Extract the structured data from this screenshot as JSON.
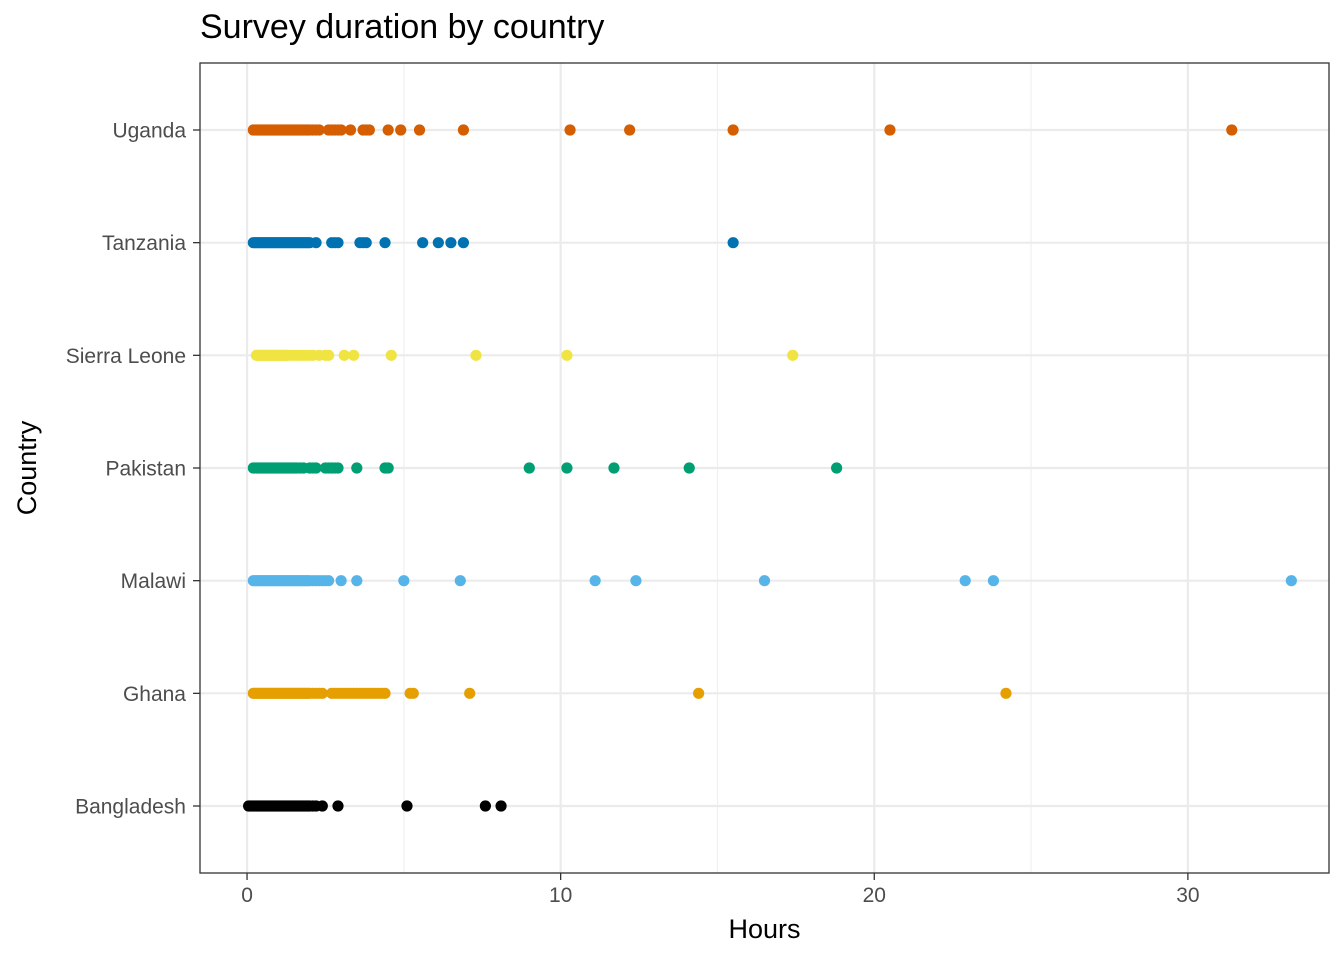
{
  "chart_data": {
    "type": "scatter",
    "title": "Survey duration by country",
    "xlabel": "Hours",
    "ylabel": "Country",
    "xlim": [
      -1.5,
      34.5
    ],
    "x_ticks": [
      0,
      10,
      20,
      30
    ],
    "grid": true,
    "legend": "none",
    "categories": [
      "Bangladesh",
      "Ghana",
      "Malawi",
      "Pakistan",
      "Sierra Leone",
      "Tanzania",
      "Uganda"
    ],
    "series": [
      {
        "category": "Bangladesh",
        "color": "#000000",
        "values": [
          0.05,
          0.1,
          0.15,
          0.2,
          0.25,
          0.3,
          0.35,
          0.4,
          0.45,
          0.5,
          0.55,
          0.6,
          0.65,
          0.7,
          0.75,
          0.8,
          0.85,
          0.9,
          0.95,
          1.0,
          1.05,
          1.1,
          1.15,
          1.2,
          1.25,
          1.3,
          1.35,
          1.4,
          1.45,
          1.5,
          1.55,
          1.6,
          1.65,
          1.7,
          1.75,
          1.8,
          1.85,
          1.9,
          1.95,
          2.0,
          2.1,
          2.2,
          2.4,
          2.9,
          5.1,
          7.6,
          8.1
        ]
      },
      {
        "category": "Ghana",
        "color": "#E69F00",
        "values": [
          0.2,
          0.25,
          0.3,
          0.35,
          0.4,
          0.45,
          0.5,
          0.55,
          0.6,
          0.65,
          0.7,
          0.75,
          0.8,
          0.85,
          0.9,
          0.95,
          1.0,
          1.05,
          1.1,
          1.15,
          1.2,
          1.25,
          1.3,
          1.35,
          1.4,
          1.45,
          1.5,
          1.55,
          1.6,
          1.65,
          1.7,
          1.75,
          1.8,
          1.85,
          1.9,
          1.95,
          2.0,
          2.1,
          2.2,
          2.3,
          2.4,
          2.7,
          2.8,
          2.9,
          3.0,
          3.1,
          3.2,
          3.3,
          3.4,
          3.5,
          3.6,
          3.7,
          3.8,
          3.9,
          4.0,
          4.1,
          4.2,
          4.3,
          4.4,
          5.2,
          5.3,
          7.1,
          14.4,
          24.2
        ]
      },
      {
        "category": "Malawi",
        "color": "#56B4E9",
        "values": [
          0.2,
          0.25,
          0.3,
          0.35,
          0.4,
          0.45,
          0.5,
          0.55,
          0.6,
          0.65,
          0.7,
          0.75,
          0.8,
          0.85,
          0.9,
          0.95,
          1.0,
          1.05,
          1.1,
          1.15,
          1.2,
          1.25,
          1.3,
          1.35,
          1.4,
          1.45,
          1.5,
          1.55,
          1.6,
          1.65,
          1.7,
          1.75,
          1.8,
          1.85,
          1.9,
          1.95,
          2.0,
          2.1,
          2.2,
          2.3,
          2.4,
          2.5,
          2.6,
          3.0,
          3.5,
          5.0,
          6.8,
          11.1,
          12.4,
          16.5,
          22.9,
          23.8,
          33.3
        ]
      },
      {
        "category": "Pakistan",
        "color": "#009E73",
        "values": [
          0.2,
          0.25,
          0.3,
          0.35,
          0.4,
          0.45,
          0.5,
          0.55,
          0.6,
          0.65,
          0.7,
          0.75,
          0.8,
          0.85,
          0.9,
          0.95,
          1.0,
          1.05,
          1.1,
          1.15,
          1.2,
          1.25,
          1.3,
          1.35,
          1.4,
          1.45,
          1.5,
          1.55,
          1.6,
          1.7,
          1.8,
          2.0,
          2.1,
          2.2,
          2.5,
          2.6,
          2.7,
          2.8,
          2.9,
          3.5,
          4.4,
          4.5,
          9.0,
          10.2,
          11.7,
          14.1,
          18.8
        ]
      },
      {
        "category": "Sierra Leone",
        "color": "#F0E442",
        "values": [
          0.3,
          0.35,
          0.4,
          0.45,
          0.5,
          0.55,
          0.6,
          0.65,
          0.7,
          0.75,
          0.8,
          0.85,
          0.9,
          0.95,
          1.0,
          1.05,
          1.1,
          1.15,
          1.2,
          1.25,
          1.3,
          1.4,
          1.5,
          1.6,
          1.7,
          1.8,
          1.9,
          2.0,
          2.1,
          2.3,
          2.5,
          2.6,
          3.1,
          3.4,
          4.6,
          7.3,
          10.2,
          17.4
        ]
      },
      {
        "category": "Tanzania",
        "color": "#0072B2",
        "values": [
          0.2,
          0.25,
          0.3,
          0.35,
          0.4,
          0.45,
          0.5,
          0.55,
          0.6,
          0.65,
          0.7,
          0.75,
          0.8,
          0.85,
          0.9,
          0.95,
          1.0,
          1.05,
          1.1,
          1.15,
          1.2,
          1.25,
          1.3,
          1.35,
          1.4,
          1.45,
          1.5,
          1.55,
          1.6,
          1.65,
          1.7,
          1.75,
          1.8,
          1.85,
          1.9,
          1.95,
          2.0,
          2.2,
          2.7,
          2.8,
          2.9,
          3.6,
          3.7,
          3.8,
          4.4,
          5.6,
          6.1,
          6.5,
          6.9,
          15.5
        ]
      },
      {
        "category": "Uganda",
        "color": "#D55E00",
        "values": [
          0.2,
          0.25,
          0.3,
          0.35,
          0.4,
          0.45,
          0.5,
          0.55,
          0.6,
          0.65,
          0.7,
          0.75,
          0.8,
          0.85,
          0.9,
          0.95,
          1.0,
          1.05,
          1.1,
          1.15,
          1.2,
          1.25,
          1.3,
          1.35,
          1.4,
          1.45,
          1.5,
          1.55,
          1.6,
          1.65,
          1.7,
          1.75,
          1.8,
          1.85,
          1.9,
          1.95,
          2.0,
          2.1,
          2.2,
          2.3,
          2.6,
          2.7,
          2.8,
          2.9,
          3.0,
          3.3,
          3.7,
          3.8,
          3.9,
          4.5,
          4.9,
          5.5,
          6.9,
          10.3,
          12.2,
          15.5,
          20.5,
          31.4
        ]
      }
    ]
  }
}
